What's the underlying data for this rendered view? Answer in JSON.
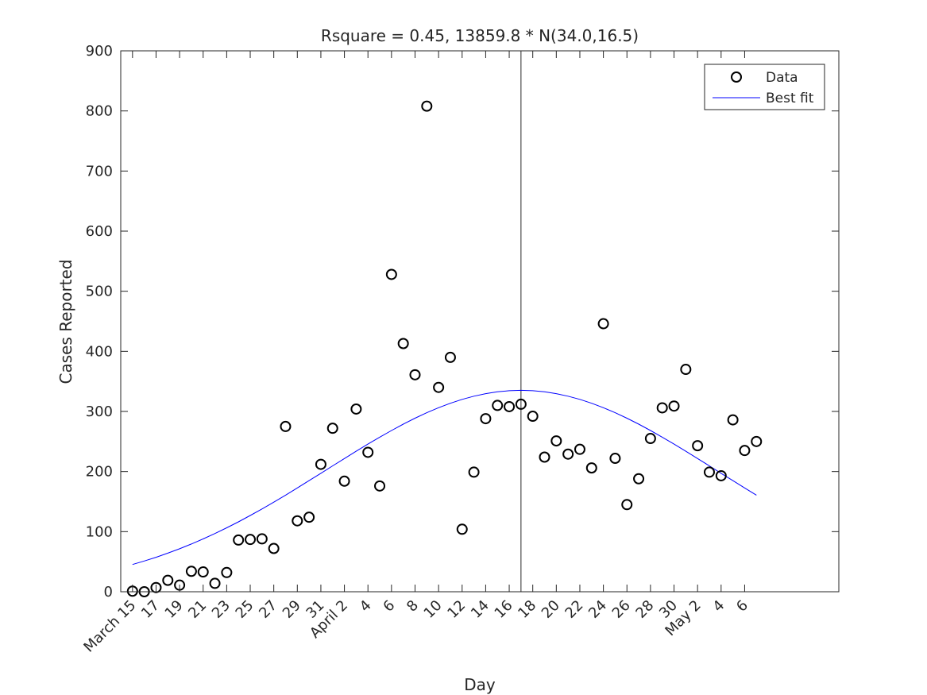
{
  "chart_data": {
    "type": "scatter",
    "title": "Rsquare = 0.45,  13859.8 * N(34.0,16.5)",
    "xlabel": "Day",
    "ylabel": "Cases Reported",
    "xlim": [
      "2020-03-14",
      "2020-05-14"
    ],
    "ylim": [
      0,
      900
    ],
    "y_ticks": [
      0,
      100,
      200,
      300,
      400,
      500,
      600,
      700,
      800,
      900
    ],
    "x_ticks": [
      {
        "date": "2020-03-15",
        "label": "March 15"
      },
      {
        "date": "2020-03-17",
        "label": "17"
      },
      {
        "date": "2020-03-19",
        "label": "19"
      },
      {
        "date": "2020-03-21",
        "label": "21"
      },
      {
        "date": "2020-03-23",
        "label": "23"
      },
      {
        "date": "2020-03-25",
        "label": "25"
      },
      {
        "date": "2020-03-27",
        "label": "27"
      },
      {
        "date": "2020-03-29",
        "label": "29"
      },
      {
        "date": "2020-03-31",
        "label": "31"
      },
      {
        "date": "2020-04-02",
        "label": "April 2"
      },
      {
        "date": "2020-04-04",
        "label": "4"
      },
      {
        "date": "2020-04-06",
        "label": "6"
      },
      {
        "date": "2020-04-08",
        "label": "8"
      },
      {
        "date": "2020-04-10",
        "label": "10"
      },
      {
        "date": "2020-04-12",
        "label": "12"
      },
      {
        "date": "2020-04-14",
        "label": "14"
      },
      {
        "date": "2020-04-16",
        "label": "16"
      },
      {
        "date": "2020-04-18",
        "label": "18"
      },
      {
        "date": "2020-04-20",
        "label": "20"
      },
      {
        "date": "2020-04-22",
        "label": "22"
      },
      {
        "date": "2020-04-24",
        "label": "24"
      },
      {
        "date": "2020-04-26",
        "label": "26"
      },
      {
        "date": "2020-04-28",
        "label": "28"
      },
      {
        "date": "2020-04-30",
        "label": "30"
      },
      {
        "date": "2020-05-02",
        "label": "May 2"
      },
      {
        "date": "2020-05-04",
        "label": "4"
      },
      {
        "date": "2020-05-06",
        "label": "6"
      }
    ],
    "legend": {
      "placement": "top-right"
    },
    "grid": false,
    "series": [
      {
        "name": "Data",
        "marker": "circle",
        "color": "#000000",
        "x": [
          "2020-03-15",
          "2020-03-16",
          "2020-03-17",
          "2020-03-18",
          "2020-03-19",
          "2020-03-20",
          "2020-03-21",
          "2020-03-22",
          "2020-03-23",
          "2020-03-24",
          "2020-03-25",
          "2020-03-26",
          "2020-03-27",
          "2020-03-28",
          "2020-03-29",
          "2020-03-30",
          "2020-03-31",
          "2020-04-01",
          "2020-04-02",
          "2020-04-03",
          "2020-04-04",
          "2020-04-05",
          "2020-04-06",
          "2020-04-07",
          "2020-04-08",
          "2020-04-09",
          "2020-04-10",
          "2020-04-11",
          "2020-04-12",
          "2020-04-13",
          "2020-04-14",
          "2020-04-15",
          "2020-04-16",
          "2020-04-17",
          "2020-04-18",
          "2020-04-19",
          "2020-04-20",
          "2020-04-21",
          "2020-04-22",
          "2020-04-23",
          "2020-04-24",
          "2020-04-25",
          "2020-04-26",
          "2020-04-27",
          "2020-04-28",
          "2020-04-29",
          "2020-04-30",
          "2020-05-01",
          "2020-05-02",
          "2020-05-03",
          "2020-05-04",
          "2020-05-05",
          "2020-05-06",
          "2020-05-07"
        ],
        "y": [
          1,
          0,
          7,
          19,
          11,
          34,
          33,
          14,
          32,
          86,
          87,
          88,
          72,
          275,
          118,
          124,
          212,
          272,
          184,
          304,
          232,
          176,
          528,
          413,
          361,
          808,
          340,
          390,
          104,
          199,
          288,
          310,
          308,
          312,
          292,
          224,
          251,
          229,
          237,
          206,
          446,
          222,
          145,
          188,
          255,
          306,
          309,
          370,
          243,
          199,
          193,
          286,
          235,
          250
        ]
      },
      {
        "name": "Best fit",
        "type": "line",
        "color": "#0000ff",
        "amplitude": 13859.8,
        "mean_day": 34.0,
        "sd_days": 16.5,
        "x_range": [
          "2020-03-15",
          "2020-05-07"
        ]
      }
    ],
    "reference_line": {
      "date": "2020-04-17",
      "color": "#262626"
    }
  }
}
